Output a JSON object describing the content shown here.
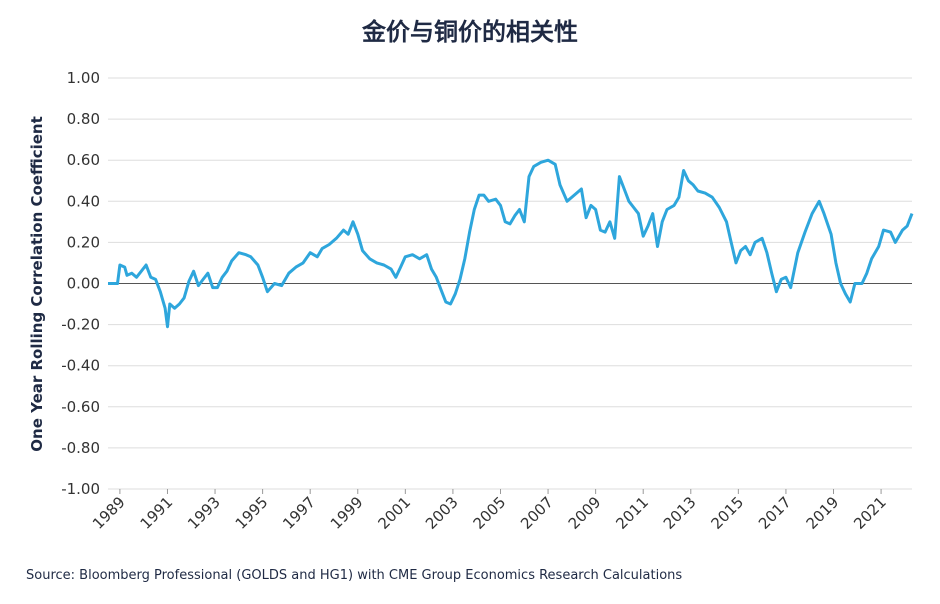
{
  "chart_data": {
    "type": "line",
    "title": "金价与铜价的相关性",
    "ylabel": "One Year Rolling Correlation Coefficient",
    "source": "Source: Bloomberg Professional (GOLDS and HG1) with CME Group Economics Research Calculations",
    "color": "#2ea6dc",
    "grid": true,
    "xlim": [
      1988.5,
      2022.3
    ],
    "xticks": [
      1989,
      1991,
      1993,
      1995,
      1997,
      1999,
      2001,
      2003,
      2005,
      2007,
      2009,
      2011,
      2013,
      2015,
      2017,
      2019,
      2021
    ],
    "ylim": [
      -1,
      1
    ],
    "yticks": [
      {
        "value": 1,
        "label": "1.00"
      },
      {
        "value": 0.8,
        "label": "0.80"
      },
      {
        "value": 0.6,
        "label": "0.60"
      },
      {
        "value": 0.4,
        "label": "0.40"
      },
      {
        "value": 0.2,
        "label": "0.20"
      },
      {
        "value": 0,
        "label": "0.00"
      },
      {
        "value": -0.2,
        "label": "-0.20"
      },
      {
        "value": -0.4,
        "label": "-0.40"
      },
      {
        "value": -0.6,
        "label": "-0.60"
      },
      {
        "value": -0.8,
        "label": "-0.80"
      },
      {
        "value": -1,
        "label": "-1.00"
      }
    ],
    "x": [
      1988.5,
      1988.9,
      1989.0,
      1989.2,
      1989.3,
      1989.5,
      1989.7,
      1989.9,
      1990.1,
      1990.3,
      1990.5,
      1990.7,
      1990.9,
      1991.0,
      1991.1,
      1991.3,
      1991.5,
      1991.7,
      1991.9,
      1992.1,
      1992.3,
      1992.5,
      1992.7,
      1992.9,
      1993.1,
      1993.3,
      1993.5,
      1993.7,
      1994.0,
      1994.3,
      1994.5,
      1994.8,
      1995.0,
      1995.2,
      1995.5,
      1995.8,
      1996.1,
      1996.4,
      1996.7,
      1997.0,
      1997.3,
      1997.5,
      1997.8,
      1998.1,
      1998.4,
      1998.6,
      1998.8,
      1999.0,
      1999.2,
      1999.5,
      1999.8,
      2000.1,
      2000.4,
      2000.6,
      2000.8,
      2001.0,
      2001.3,
      2001.6,
      2001.9,
      2002.1,
      2002.3,
      2002.5,
      2002.7,
      2002.9,
      2003.1,
      2003.3,
      2003.5,
      2003.7,
      2003.9,
      2004.1,
      2004.3,
      2004.5,
      2004.8,
      2005.0,
      2005.2,
      2005.4,
      2005.6,
      2005.8,
      2006.0,
      2006.2,
      2006.4,
      2006.7,
      2007.0,
      2007.3,
      2007.5,
      2007.8,
      2008.0,
      2008.2,
      2008.4,
      2008.6,
      2008.8,
      2009.0,
      2009.2,
      2009.4,
      2009.6,
      2009.8,
      2010.0,
      2010.2,
      2010.4,
      2010.6,
      2010.8,
      2011.0,
      2011.2,
      2011.4,
      2011.6,
      2011.8,
      2012.0,
      2012.3,
      2012.5,
      2012.7,
      2012.9,
      2013.1,
      2013.3,
      2013.6,
      2013.9,
      2014.2,
      2014.5,
      2014.7,
      2014.9,
      2015.1,
      2015.3,
      2015.5,
      2015.7,
      2016.0,
      2016.2,
      2016.4,
      2016.6,
      2016.8,
      2017.0,
      2017.2,
      2017.5,
      2017.8,
      2018.1,
      2018.4,
      2018.6,
      2018.9,
      2019.1,
      2019.3,
      2019.5,
      2019.7,
      2019.9,
      2020.2,
      2020.4,
      2020.6,
      2020.9,
      2021.1,
      2021.4,
      2021.6,
      2021.9,
      2022.1,
      2022.3
    ],
    "values": [
      0.0,
      0.0,
      0.09,
      0.08,
      0.04,
      0.05,
      0.03,
      0.06,
      0.09,
      0.03,
      0.02,
      -0.04,
      -0.12,
      -0.21,
      -0.1,
      -0.12,
      -0.1,
      -0.07,
      0.01,
      0.06,
      -0.01,
      0.02,
      0.05,
      -0.02,
      -0.02,
      0.03,
      0.06,
      0.11,
      0.15,
      0.14,
      0.13,
      0.09,
      0.03,
      -0.04,
      0.0,
      -0.01,
      0.05,
      0.08,
      0.1,
      0.15,
      0.13,
      0.17,
      0.19,
      0.22,
      0.26,
      0.24,
      0.3,
      0.24,
      0.16,
      0.12,
      0.1,
      0.09,
      0.07,
      0.03,
      0.08,
      0.13,
      0.14,
      0.12,
      0.14,
      0.07,
      0.03,
      -0.03,
      -0.09,
      -0.1,
      -0.05,
      0.02,
      0.12,
      0.25,
      0.36,
      0.43,
      0.43,
      0.4,
      0.41,
      0.38,
      0.3,
      0.29,
      0.33,
      0.36,
      0.3,
      0.52,
      0.57,
      0.59,
      0.6,
      0.58,
      0.48,
      0.4,
      0.42,
      0.44,
      0.46,
      0.32,
      0.38,
      0.36,
      0.26,
      0.25,
      0.3,
      0.22,
      0.52,
      0.46,
      0.4,
      0.37,
      0.34,
      0.23,
      0.28,
      0.34,
      0.18,
      0.3,
      0.36,
      0.38,
      0.42,
      0.55,
      0.5,
      0.48,
      0.45,
      0.44,
      0.42,
      0.37,
      0.3,
      0.2,
      0.1,
      0.16,
      0.18,
      0.14,
      0.2,
      0.22,
      0.15,
      0.05,
      -0.04,
      0.02,
      0.03,
      -0.02,
      0.15,
      0.25,
      0.34,
      0.4,
      0.34,
      0.24,
      0.1,
      0.0,
      -0.05,
      -0.09,
      0.0,
      0.0,
      0.05,
      0.12,
      0.18,
      0.26,
      0.25,
      0.2,
      0.26,
      0.28,
      0.34
    ]
  }
}
